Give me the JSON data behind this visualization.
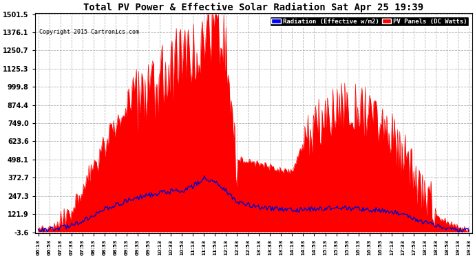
{
  "title": "Total PV Power & Effective Solar Radiation Sat Apr 25 19:39",
  "copyright": "Copyright 2015 Cartronics.com",
  "legend_blue": "Radiation (Effective w/m2)",
  "legend_red": "PV Panels (DC Watts)",
  "bg_color": "#ffffff",
  "plot_bg_color": "#ffffff",
  "grid_color": "#aaaaaa",
  "title_color": "#000000",
  "ymin": -3.6,
  "ymax": 1501.5,
  "yticks": [
    1501.5,
    1376.1,
    1250.7,
    1125.3,
    999.8,
    874.4,
    749.0,
    623.6,
    498.1,
    372.7,
    247.3,
    121.9,
    -3.6
  ],
  "xtick_labels": [
    "06:13",
    "06:53",
    "07:13",
    "07:33",
    "07:53",
    "08:13",
    "08:33",
    "08:53",
    "09:13",
    "09:33",
    "09:53",
    "10:13",
    "10:33",
    "10:53",
    "11:13",
    "11:33",
    "11:53",
    "12:13",
    "12:33",
    "12:53",
    "13:13",
    "13:33",
    "13:53",
    "14:13",
    "14:33",
    "14:53",
    "15:13",
    "15:33",
    "15:53",
    "16:13",
    "16:33",
    "16:53",
    "17:13",
    "17:33",
    "17:53",
    "18:13",
    "18:33",
    "18:53",
    "19:13",
    "19:33"
  ],
  "red_color": "#ff0000",
  "blue_line_color": "#0000cc",
  "pv_base": [
    10,
    20,
    50,
    130,
    270,
    450,
    580,
    720,
    870,
    960,
    1050,
    1100,
    1180,
    1250,
    1320,
    1420,
    1490,
    1380,
    500,
    480,
    460,
    440,
    420,
    410,
    600,
    700,
    750,
    820,
    860,
    830,
    780,
    720,
    650,
    520,
    380,
    220,
    120,
    60,
    20,
    5
  ],
  "rad_base": [
    5,
    10,
    20,
    40,
    70,
    110,
    150,
    185,
    210,
    230,
    250,
    265,
    275,
    280,
    310,
    370,
    350,
    280,
    200,
    185,
    170,
    160,
    155,
    150,
    150,
    155,
    160,
    165,
    160,
    155,
    150,
    145,
    135,
    115,
    90,
    65,
    40,
    20,
    8,
    3
  ]
}
